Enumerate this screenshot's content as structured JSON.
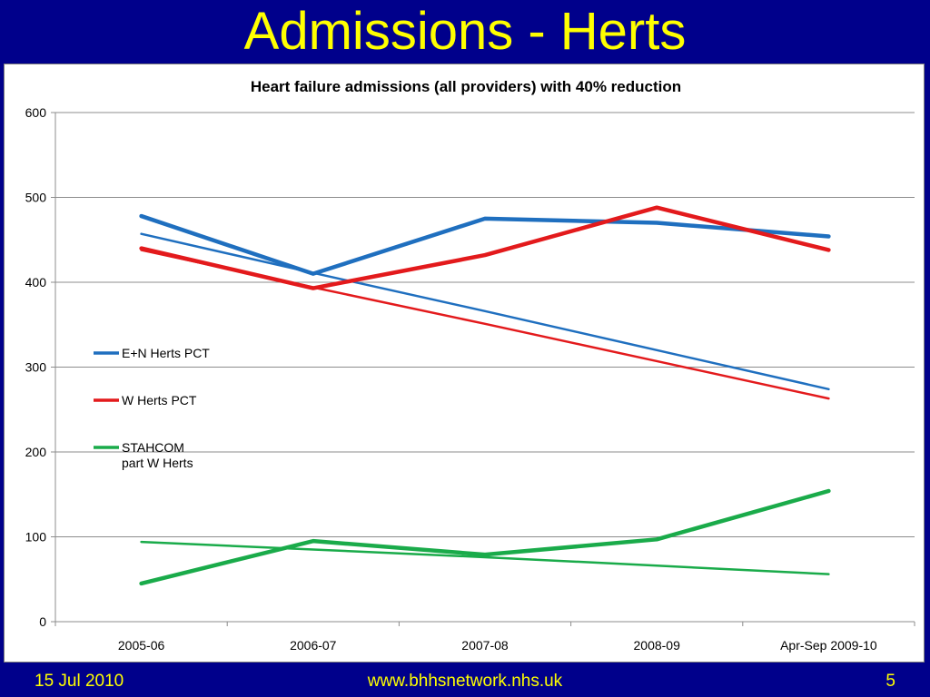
{
  "slide": {
    "title": "Admissions - Herts",
    "footer_date": "15 Jul 2010",
    "footer_url": "www.bhhsnetwork.nhs.uk",
    "footer_page": "5"
  },
  "chart_data": {
    "type": "line",
    "title": "Heart failure admissions (all providers) with 40% reduction",
    "xlabel": "",
    "ylabel": "",
    "categories": [
      "2005-06",
      "2006-07",
      "2007-08",
      "2008-09",
      "Apr-Sep 2009-10"
    ],
    "ylim": [
      0,
      600
    ],
    "yticks": [
      0,
      100,
      200,
      300,
      400,
      500,
      600
    ],
    "grid": true,
    "legend_position": "left",
    "series": [
      {
        "name": "E+N Herts PCT",
        "color": "#1f6fbf",
        "style": "thick",
        "values": [
          478,
          410,
          475,
          470,
          454
        ]
      },
      {
        "name": "",
        "color": "#1f6fbf",
        "style": "thin",
        "values": [
          457,
          411,
          366,
          320,
          274
        ]
      },
      {
        "name": "W Herts PCT",
        "color": "#e31a1c",
        "style": "thick",
        "values": [
          440,
          393,
          432,
          488,
          438
        ]
      },
      {
        "name": "",
        "color": "#e31a1c",
        "style": "thin",
        "values": [
          438,
          394,
          351,
          307,
          263
        ]
      },
      {
        "name": "STAHCOM\npart W Herts",
        "color": "#1aab4a",
        "style": "thick",
        "values": [
          45,
          95,
          79,
          97,
          154
        ]
      },
      {
        "name": "",
        "color": "#1aab4a",
        "style": "thin",
        "values": [
          94,
          85,
          76,
          66,
          56
        ]
      }
    ]
  }
}
